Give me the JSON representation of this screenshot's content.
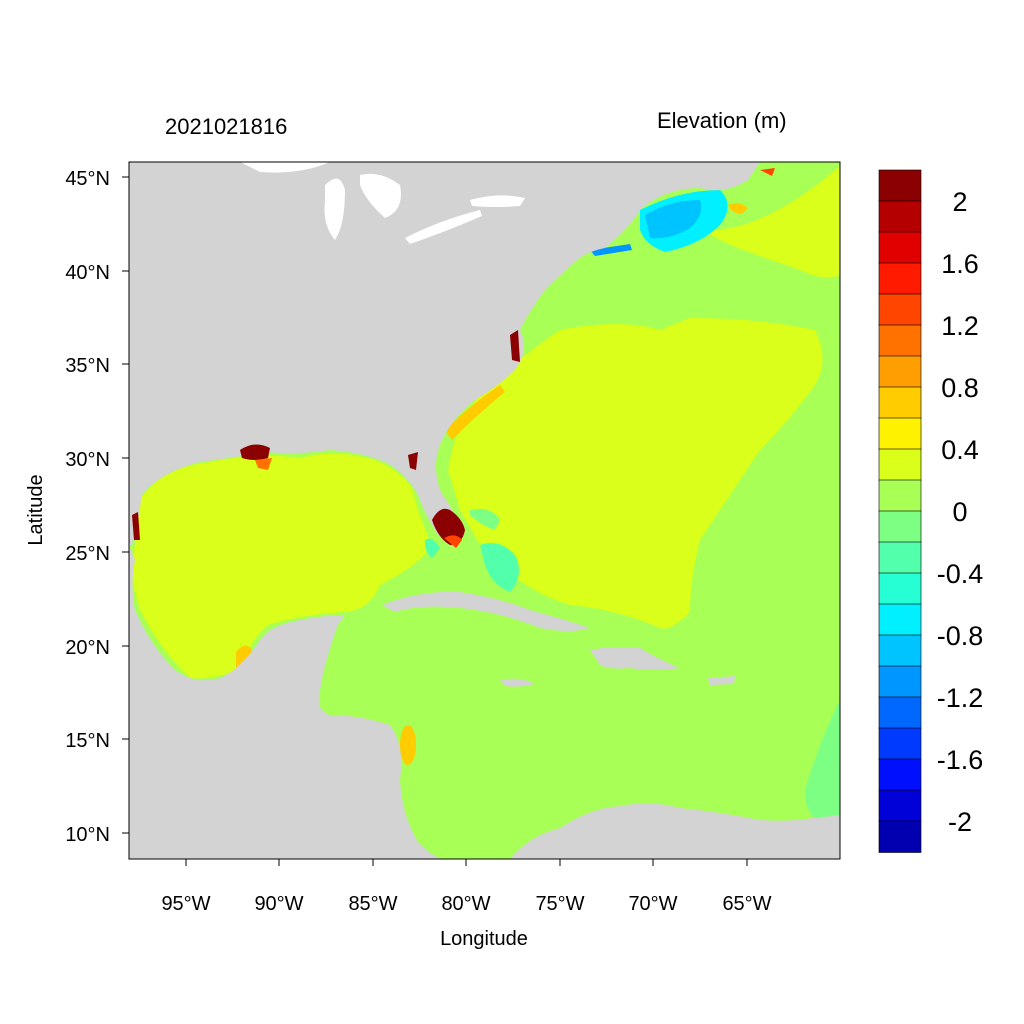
{
  "figure": {
    "timestamp": "2021021816",
    "legend_title": "Elevation (m)",
    "xlabel": "Longitude",
    "ylabel": "Latitude"
  },
  "axes": {
    "x_ticks": [
      "95°W",
      "90°W",
      "85°W",
      "80°W",
      "75°W",
      "70°W",
      "65°W"
    ],
    "y_ticks": [
      "45°N",
      "40°N",
      "35°N",
      "30°N",
      "25°N",
      "20°N",
      "15°N",
      "10°N"
    ],
    "lon_range": [
      -98,
      -60
    ],
    "lat_range": [
      8.5,
      46
    ]
  },
  "colorbar": {
    "colors": [
      "#8b0000",
      "#b40000",
      "#e00000",
      "#ff1a00",
      "#ff4500",
      "#ff7200",
      "#ff9e00",
      "#ffcc00",
      "#fff200",
      "#d9ff1a",
      "#a8ff55",
      "#7dff84",
      "#52ffaa",
      "#26ffd4",
      "#00f0ff",
      "#00c4ff",
      "#0096ff",
      "#0068ff",
      "#003aff",
      "#0010ff",
      "#0000d8",
      "#0000b0"
    ],
    "labels": [
      "2",
      "1.6",
      "1.2",
      "0.8",
      "0.4",
      "0",
      "-0.4",
      "-0.8",
      "-1.2",
      "-1.6",
      "-2"
    ]
  },
  "colors": {
    "land": "#d3d3d3",
    "gulf_and_atlantic_positive": "#d9ff1a",
    "caribbean_near_zero": "#a8ff55",
    "negative_gulf_of_maine": "#00c4ff",
    "storm_surge_max": "#8b0000"
  }
}
